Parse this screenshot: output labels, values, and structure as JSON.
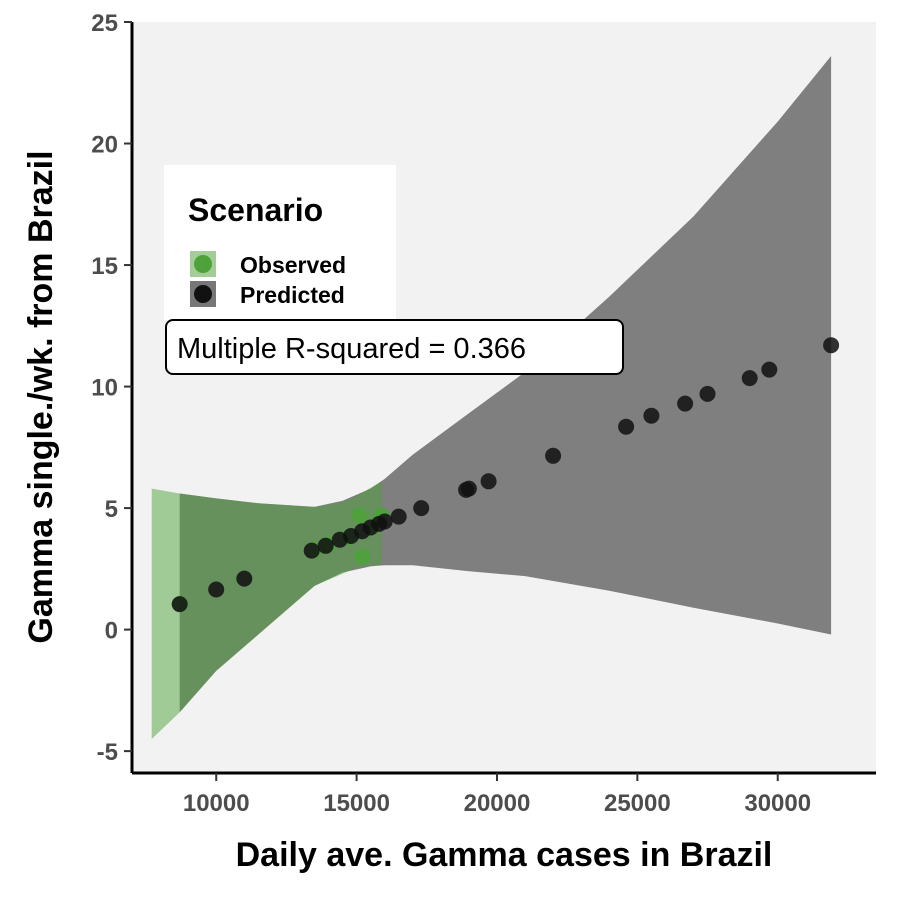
{
  "chart_data": {
    "type": "scatter",
    "xlabel": "Daily ave. Gamma cases in Brazil",
    "ylabel": "Gamma single./wk. from Brazil",
    "xlim": [
      7000,
      33500
    ],
    "ylim": [
      -5.9,
      25
    ],
    "xticks": [
      10000,
      15000,
      20000,
      25000,
      30000
    ],
    "yticks": [
      -5,
      0,
      5,
      10,
      15,
      20,
      25
    ],
    "grid": false,
    "legend": {
      "title": "Scenario",
      "placement": "top-left",
      "entries": [
        {
          "name": "Observed",
          "color": "#4ea23a"
        },
        {
          "name": "Predicted",
          "color": "#111111"
        }
      ]
    },
    "annotation": "Multiple R-squared = 0.366",
    "series": [
      {
        "name": "Observed",
        "color": "#4ea23a",
        "points": [
          [
            8700,
            1.05
          ],
          [
            13500,
            3.3
          ],
          [
            14000,
            3.5
          ],
          [
            14700,
            3.8
          ],
          [
            15100,
            4.7
          ],
          [
            15200,
            3.0
          ],
          [
            15500,
            4.2
          ],
          [
            15800,
            4.5
          ],
          [
            15900,
            4.7
          ]
        ],
        "ribbon": {
          "color": "#4ea23a",
          "x": [
            7700,
            8700,
            10000,
            11500,
            13500,
            14500,
            15000,
            15900
          ],
          "upper": [
            5.8,
            5.6,
            5.4,
            5.2,
            5.05,
            5.25,
            5.5,
            6.1
          ],
          "lower": [
            -4.5,
            -3.4,
            -1.7,
            -0.2,
            1.8,
            2.3,
            2.55,
            2.7
          ]
        }
      },
      {
        "name": "Predicted",
        "color": "#111111",
        "points": [
          [
            8700,
            1.05
          ],
          [
            10000,
            1.65
          ],
          [
            11000,
            2.1
          ],
          [
            13400,
            3.25
          ],
          [
            13900,
            3.45
          ],
          [
            14400,
            3.7
          ],
          [
            14800,
            3.85
          ],
          [
            15200,
            4.05
          ],
          [
            15500,
            4.2
          ],
          [
            15800,
            4.35
          ],
          [
            16000,
            4.45
          ],
          [
            16500,
            4.65
          ],
          [
            17300,
            5.0
          ],
          [
            18900,
            5.75
          ],
          [
            19000,
            5.8
          ],
          [
            19700,
            6.1
          ],
          [
            22000,
            7.15
          ],
          [
            24600,
            8.35
          ],
          [
            25500,
            8.8
          ],
          [
            26700,
            9.3
          ],
          [
            27500,
            9.7
          ],
          [
            29000,
            10.35
          ],
          [
            29700,
            10.7
          ],
          [
            31900,
            11.7
          ]
        ],
        "ribbon": {
          "color": "#7f7f7f",
          "x": [
            8700,
            10000,
            11500,
            13500,
            14500,
            15500,
            16000,
            17000,
            19000,
            21000,
            24000,
            27000,
            30000,
            31900
          ],
          "upper": [
            5.6,
            5.4,
            5.2,
            5.05,
            5.3,
            5.8,
            6.2,
            7.2,
            8.9,
            10.6,
            13.7,
            17.0,
            20.9,
            23.6
          ],
          "lower": [
            -3.4,
            -1.7,
            -0.2,
            1.8,
            2.35,
            2.6,
            2.65,
            2.65,
            2.4,
            2.2,
            1.6,
            0.9,
            0.25,
            -0.2
          ]
        }
      }
    ]
  }
}
